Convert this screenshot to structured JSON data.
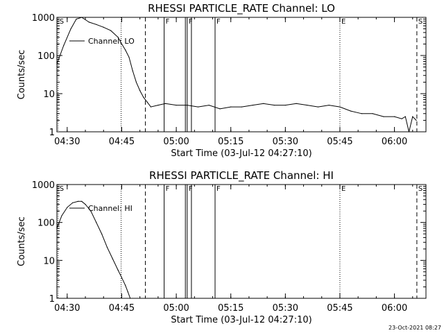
{
  "footer": {
    "timestamp": "23-Oct-2021 08:27"
  },
  "chart_data": [
    {
      "type": "line",
      "title": "RHESSI PARTICLE_RATE Channel: LO",
      "xlabel": "Start Time (03-Jul-12 04:27:10)",
      "ylabel": "Counts/sec",
      "yscale": "log",
      "ylim": [
        1,
        1000
      ],
      "xlim": [
        "04:27:10",
        "06:08:40"
      ],
      "x_ticks": [
        "04:30",
        "04:45",
        "05:00",
        "05:15",
        "05:30",
        "05:45",
        "06:00"
      ],
      "y_ticks": [
        "1",
        "10",
        "100",
        "1000"
      ],
      "legend": "upper-left",
      "series": [
        {
          "name": "Channel: LO",
          "x": [
            "04:27:10",
            "04:29:00",
            "04:31:00",
            "04:32:30",
            "04:34:00",
            "04:36:00",
            "04:38:00",
            "04:40:00",
            "04:42:00",
            "04:44:00",
            "04:45:00",
            "04:46:00",
            "04:47:00",
            "04:48:00",
            "04:49:00",
            "04:50:00",
            "04:51:00",
            "04:52:00",
            "04:53:00",
            "04:55:00",
            "04:57:00",
            "05:00:00",
            "05:03:00",
            "05:06:00",
            "05:09:00",
            "05:12:00",
            "05:15:00",
            "05:18:00",
            "05:21:00",
            "05:24:00",
            "05:27:00",
            "05:30:00",
            "05:33:00",
            "05:36:00",
            "05:39:00",
            "05:42:00",
            "05:45:00",
            "05:48:00",
            "05:51:00",
            "05:54:00",
            "05:57:00",
            "06:00:00",
            "06:02:00",
            "06:03:00",
            "06:04:00",
            "06:05:00",
            "06:06:00"
          ],
          "y": [
            60,
            180,
            500,
            900,
            1000,
            750,
            650,
            550,
            450,
            300,
            200,
            140,
            90,
            40,
            20,
            12,
            8,
            6,
            4.5,
            5,
            5.5,
            5,
            5,
            4.5,
            5,
            4,
            4.5,
            4.5,
            5,
            5.5,
            5,
            5,
            5.5,
            5,
            4.5,
            5,
            4.5,
            3.5,
            3,
            3,
            2.5,
            2.5,
            2.2,
            2.5,
            1,
            2.5,
            2
          ]
        }
      ],
      "markers": [
        {
          "label": "S",
          "time": "04:27:30",
          "style": "dotted"
        },
        {
          "label": "",
          "time": "04:44:50",
          "style": "dotted"
        },
        {
          "label": "",
          "time": "04:51:30",
          "style": "dashed"
        },
        {
          "label": "F",
          "time": "04:56:40",
          "style": "solid"
        },
        {
          "label": "",
          "time": "05:02:30",
          "style": "solid"
        },
        {
          "label": "F",
          "time": "05:03:00",
          "style": "solid"
        },
        {
          "label": "",
          "time": "05:04:10",
          "style": "solid"
        },
        {
          "label": "F",
          "time": "05:10:40",
          "style": "solid"
        },
        {
          "label": "E",
          "time": "05:45:00",
          "style": "dotted"
        },
        {
          "label": "S",
          "time": "06:06:10",
          "style": "dashed"
        }
      ]
    },
    {
      "type": "line",
      "title": "RHESSI PARTICLE_RATE Channel: HI",
      "xlabel": "Start Time (03-Jul-12 04:27:10)",
      "ylabel": "Counts/sec",
      "yscale": "log",
      "ylim": [
        1,
        1000
      ],
      "xlim": [
        "04:27:10",
        "06:08:40"
      ],
      "x_ticks": [
        "04:30",
        "04:45",
        "05:00",
        "05:15",
        "05:30",
        "05:45",
        "06:00"
      ],
      "y_ticks": [
        "1",
        "10",
        "100",
        "1000"
      ],
      "legend": "upper-left",
      "series": [
        {
          "name": "Channel: HI",
          "x": [
            "04:27:10",
            "04:28:30",
            "04:30:00",
            "04:31:30",
            "04:33:00",
            "04:34:00",
            "04:35:00",
            "04:36:30",
            "04:38:00",
            "04:39:30",
            "04:41:00",
            "04:42:30",
            "04:44:00",
            "04:45:00",
            "04:46:00",
            "04:46:40",
            "04:47:20"
          ],
          "y": [
            70,
            150,
            250,
            330,
            360,
            360,
            300,
            200,
            100,
            50,
            22,
            11,
            5.5,
            3.5,
            2.2,
            1.5,
            1
          ]
        }
      ],
      "markers": [
        {
          "label": "S",
          "time": "04:27:30",
          "style": "dotted"
        },
        {
          "label": "",
          "time": "04:44:50",
          "style": "dotted"
        },
        {
          "label": "",
          "time": "04:51:30",
          "style": "dashed"
        },
        {
          "label": "F",
          "time": "04:56:40",
          "style": "solid"
        },
        {
          "label": "",
          "time": "05:02:30",
          "style": "solid"
        },
        {
          "label": "F",
          "time": "05:03:00",
          "style": "solid"
        },
        {
          "label": "",
          "time": "05:04:10",
          "style": "solid"
        },
        {
          "label": "F",
          "time": "05:10:40",
          "style": "solid"
        },
        {
          "label": "E",
          "time": "05:45:00",
          "style": "dotted"
        },
        {
          "label": "S",
          "time": "06:06:10",
          "style": "dashed"
        }
      ]
    }
  ]
}
